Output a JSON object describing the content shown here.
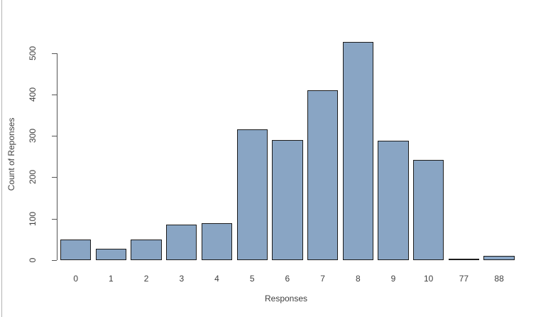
{
  "window": {
    "background": "#ffffff",
    "pane_border_color": "#b3b3b3"
  },
  "chart_data": {
    "type": "bar",
    "title": "",
    "xlabel": "Responses",
    "ylabel": "Count of Reponses",
    "categories": [
      "0",
      "1",
      "2",
      "3",
      "4",
      "5",
      "6",
      "7",
      "8",
      "9",
      "10",
      "77",
      "88"
    ],
    "values": [
      50,
      28,
      50,
      85,
      90,
      315,
      290,
      410,
      527,
      288,
      242,
      2,
      10
    ],
    "ylim": [
      0,
      500
    ],
    "yticks": [
      0,
      100,
      200,
      300,
      400,
      500
    ],
    "grid": false,
    "legend": "none",
    "y_tick_labels_rotated": true,
    "colors": {
      "bar_fill": "#89a5c4",
      "bar_border": "#1c1c1c",
      "axis": "#555555",
      "text": "#404040"
    }
  }
}
